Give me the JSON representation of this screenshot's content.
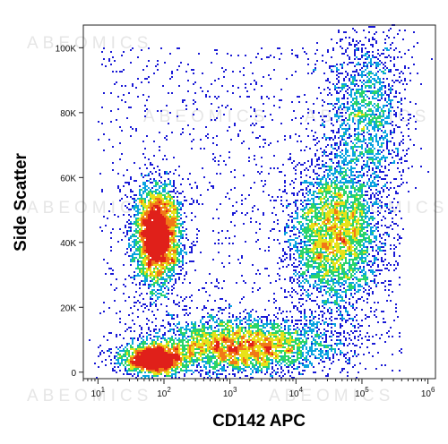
{
  "watermark": "ABEOMICS",
  "chart_data": {
    "type": "scatter",
    "subtype": "flow-cytometry-density-dot-plot",
    "title": "",
    "xlabel": "CD142 APC",
    "ylabel": "Side Scatter",
    "x_scale": "log",
    "xlim": [
      6,
      1300000
    ],
    "ylim": [
      -2000,
      107000
    ],
    "x_ticks": [
      {
        "value": 10,
        "base": "10",
        "exp": "1"
      },
      {
        "value": 100,
        "base": "10",
        "exp": "2"
      },
      {
        "value": 1000,
        "base": "10",
        "exp": "3"
      },
      {
        "value": 10000,
        "base": "10",
        "exp": "4"
      },
      {
        "value": 100000,
        "base": "10",
        "exp": "5"
      },
      {
        "value": 1000000,
        "base": "10",
        "exp": "6"
      }
    ],
    "y_ticks": [
      {
        "value": 0,
        "label": "0"
      },
      {
        "value": 20000,
        "label": "20K"
      },
      {
        "value": 40000,
        "label": "40K"
      },
      {
        "value": 60000,
        "label": "60K"
      },
      {
        "value": 80000,
        "label": "80K"
      },
      {
        "value": 100000,
        "label": "100K"
      }
    ],
    "density_colors": [
      "#1a1ad6",
      "#0aa3e0",
      "#2ad46a",
      "#e8e21a",
      "#f07818",
      "#e0201a"
    ],
    "populations": [
      {
        "name": "",
        "x_center": 80,
        "y_center": 42000,
        "log_x_sd": 0.18,
        "y_sd": 8000,
        "count": 3300
      },
      {
        "name": "",
        "x_center": 70,
        "y_center": 4000,
        "log_x_sd": 0.25,
        "y_sd": 2500,
        "count": 1600
      },
      {
        "name": "",
        "x_center": 1500,
        "y_center": 8000,
        "log_x_sd": 0.7,
        "y_sd": 4500,
        "count": 3400
      },
      {
        "name": "",
        "x_center": 40000,
        "y_center": 42000,
        "log_x_sd": 0.35,
        "y_sd": 12000,
        "count": 3600
      },
      {
        "name": "",
        "x_center": 120000,
        "y_center": 80000,
        "log_x_sd": 0.3,
        "y_sd": 14000,
        "count": 1500
      }
    ]
  }
}
